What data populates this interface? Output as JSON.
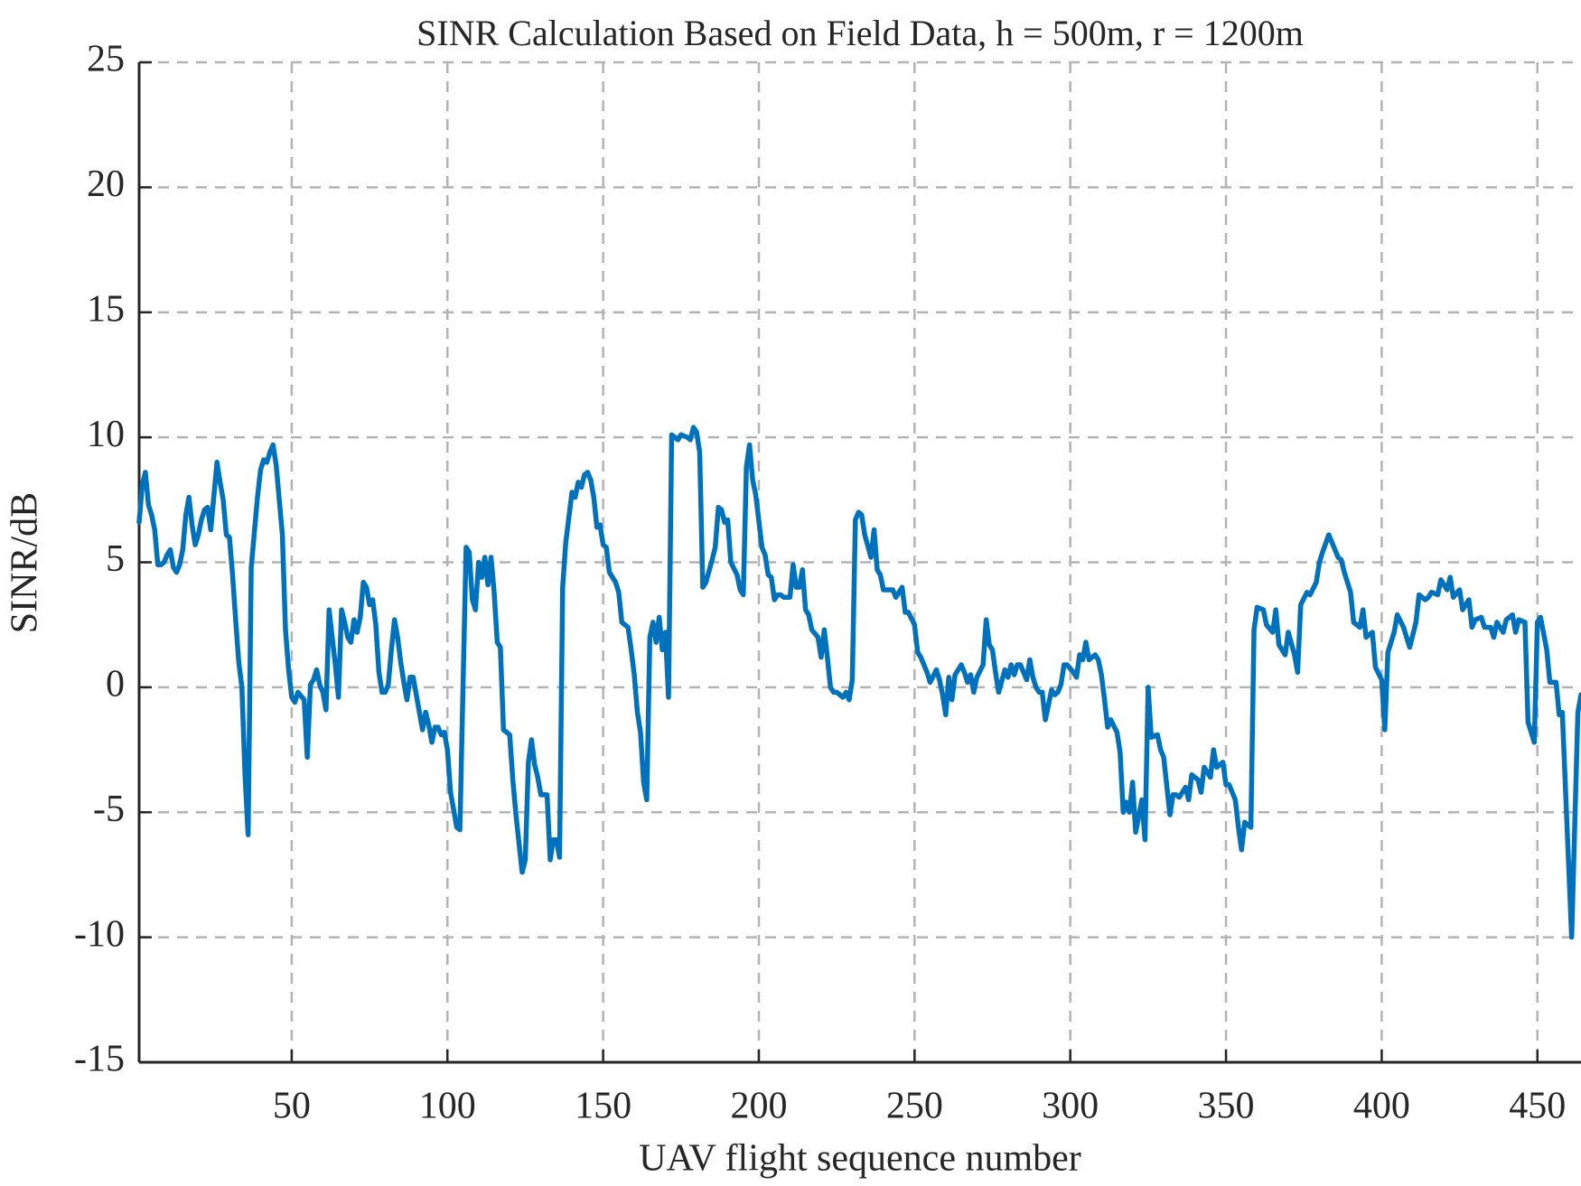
{
  "chart_data": {
    "type": "line",
    "title": "SINR Calculation Based on Field Data, h = 500m, r = 1200m",
    "xlabel": "UAV flight sequence number",
    "ylabel": "SINR/dB",
    "color": "#0072bd",
    "grid": true,
    "xlim": [
      1,
      464
    ],
    "xticks": [
      50,
      100,
      150,
      200,
      250,
      300,
      350,
      400,
      450
    ],
    "ylim": [
      -15,
      25
    ],
    "yticks": [
      -15,
      -10,
      -5,
      0,
      5,
      10,
      15,
      20,
      25
    ],
    "x": [
      1,
      2,
      3,
      4,
      5,
      6,
      7,
      8,
      9,
      10,
      11,
      12,
      13,
      14,
      15,
      16,
      17,
      18,
      19,
      20,
      21,
      22,
      23,
      24,
      26,
      27,
      28,
      29,
      30,
      31,
      32,
      33,
      34,
      35,
      36,
      37,
      38,
      39,
      40,
      41,
      42,
      43,
      44,
      45,
      46,
      47,
      48,
      49,
      50,
      51,
      52,
      54,
      55,
      56,
      57,
      58,
      59,
      60,
      61,
      62,
      63,
      64,
      65,
      66,
      67,
      68,
      69,
      70,
      71,
      72,
      73,
      74,
      75,
      76,
      77,
      78,
      79,
      80,
      81,
      82,
      83,
      84,
      85,
      86,
      87,
      88,
      89,
      90,
      91,
      92,
      93,
      94,
      95,
      96,
      97,
      98,
      99,
      100,
      101,
      102,
      103,
      104,
      105,
      106,
      107,
      108,
      109,
      110,
      111,
      112,
      113,
      114,
      115,
      116,
      117,
      118,
      119,
      120,
      121,
      122,
      124,
      125,
      126,
      127,
      128,
      129,
      130,
      131,
      132,
      133,
      134,
      135,
      136,
      137,
      138,
      139,
      140,
      141,
      142,
      143,
      144,
      145,
      146,
      147,
      148,
      149,
      150,
      151,
      152,
      153,
      154,
      155,
      156,
      158,
      159,
      160,
      161,
      162,
      163,
      164,
      165,
      166,
      167,
      168,
      169,
      170,
      171,
      172,
      173,
      174,
      175,
      177,
      178,
      179,
      180,
      181,
      182,
      183,
      185,
      186,
      187,
      188,
      189,
      190,
      191,
      193,
      194,
      195,
      196,
      197,
      198,
      199,
      201,
      202,
      203,
      204,
      205,
      206,
      207,
      208,
      210,
      211,
      212,
      213,
      214,
      215,
      216,
      217,
      219,
      220,
      221,
      222,
      223,
      224,
      225,
      227,
      228,
      229,
      230,
      231,
      232,
      233,
      234,
      236,
      237,
      238,
      239,
      240,
      241,
      243,
      244,
      245,
      246,
      247,
      248,
      250,
      251,
      252,
      253,
      254,
      255,
      257,
      258,
      259,
      260,
      261,
      262,
      263,
      265,
      266,
      267,
      268,
      269,
      270,
      272,
      273,
      274,
      275,
      276,
      277,
      279,
      280,
      281,
      282,
      283,
      284,
      286,
      287,
      288,
      289,
      290,
      291,
      292,
      294,
      295,
      296,
      297,
      298,
      299,
      301,
      302,
      303,
      304,
      305,
      306,
      308,
      309,
      310,
      311,
      312,
      313,
      315,
      316,
      317,
      318,
      319,
      320,
      321,
      323,
      324,
      325,
      326,
      328,
      329,
      330,
      332,
      333,
      334,
      335,
      337,
      338,
      339,
      341,
      342,
      343,
      345,
      346,
      347,
      349,
      350,
      351,
      353,
      354,
      355,
      356,
      358,
      359,
      360,
      362,
      363,
      365,
      366,
      367,
      369,
      370,
      372,
      373,
      374,
      376,
      377,
      379,
      380,
      381,
      383,
      384,
      386,
      387,
      388,
      390,
      391,
      393,
      394,
      395,
      397,
      398,
      400,
      401,
      402,
      404,
      405,
      407,
      408,
      409,
      411,
      412,
      414,
      415,
      416,
      418,
      419,
      421,
      422,
      423,
      425,
      426,
      428,
      429,
      430,
      432,
      433,
      435,
      436,
      437,
      439,
      440,
      442,
      443,
      444,
      446,
      447,
      449,
      450,
      451,
      453,
      454,
      456,
      457,
      458,
      460,
      461,
      463,
      464
    ],
    "values": [
      6.6,
      8.1,
      8.6,
      7.3,
      6.9,
      6.3,
      4.9,
      4.9,
      5.0,
      5.3,
      5.5,
      4.8,
      4.6,
      4.9,
      5.5,
      6.9,
      7.6,
      6.5,
      5.7,
      6.1,
      6.7,
      7.1,
      7.2,
      6.3,
      9.0,
      8.2,
      7.5,
      6.1,
      6.0,
      4.5,
      2.7,
      1.0,
      0.0,
      -3.5,
      -5.9,
      4.8,
      6.2,
      7.6,
      8.7,
      9.1,
      9.0,
      9.4,
      9.7,
      8.9,
      7.5,
      6.1,
      2.3,
      0.7,
      -0.4,
      -0.6,
      -0.2,
      -0.5,
      -2.8,
      0.1,
      0.3,
      0.7,
      0.1,
      -0.2,
      -0.9,
      3.1,
      2.0,
      0.9,
      -0.4,
      3.1,
      2.6,
      2.0,
      1.8,
      2.7,
      2.2,
      2.8,
      4.2,
      4.0,
      3.3,
      3.5,
      2.5,
      0.6,
      -0.2,
      -0.2,
      0.1,
      1.5,
      2.7,
      2.0,
      1.0,
      0.2,
      -0.5,
      0.4,
      0.4,
      -0.3,
      -1.0,
      -1.7,
      -1.0,
      -1.5,
      -2.2,
      -1.6,
      -1.6,
      -1.9,
      -1.8,
      -2.5,
      -4.2,
      -4.9,
      -5.6,
      -5.7,
      0.0,
      5.6,
      5.4,
      3.5,
      3.1,
      5.0,
      4.4,
      5.2,
      4.1,
      5.2,
      3.8,
      1.8,
      1.6,
      -1.7,
      -1.8,
      -1.9,
      -3.7,
      -5.1,
      -7.4,
      -6.9,
      -3.0,
      -2.1,
      -3.1,
      -3.6,
      -4.3,
      -4.3,
      -4.3,
      -6.9,
      -6.1,
      -6.1,
      -6.8,
      4.0,
      5.8,
      6.8,
      7.8,
      7.6,
      8.2,
      8.0,
      8.5,
      8.6,
      8.3,
      7.6,
      6.4,
      6.5,
      5.7,
      5.6,
      4.6,
      4.4,
      4.2,
      3.8,
      2.6,
      2.4,
      1.5,
      0.5,
      -1.0,
      -1.8,
      -3.8,
      -4.5,
      2.0,
      2.6,
      1.8,
      2.8,
      1.5,
      2.2,
      -0.4,
      10.1,
      10.0,
      9.9,
      10.1,
      10.0,
      9.9,
      10.4,
      10.2,
      9.4,
      4.0,
      4.2,
      5.1,
      5.6,
      7.2,
      7.1,
      6.6,
      6.7,
      5.0,
      4.5,
      3.9,
      3.7,
      8.8,
      9.7,
      8.3,
      7.7,
      5.6,
      5.3,
      4.5,
      4.4,
      3.5,
      3.7,
      3.7,
      3.6,
      3.6,
      4.9,
      4.0,
      4.0,
      4.7,
      3.1,
      2.9,
      2.3,
      2.0,
      1.2,
      2.3,
      1.2,
      0.0,
      -0.2,
      -0.2,
      -0.4,
      -0.2,
      -0.5,
      0.3,
      6.7,
      7.0,
      6.9,
      6.1,
      5.2,
      6.3,
      4.7,
      4.5,
      3.9,
      3.9,
      3.9,
      3.6,
      3.8,
      4.0,
      3.0,
      3.0,
      2.5,
      1.4,
      1.2,
      0.9,
      0.6,
      0.2,
      0.7,
      0.3,
      -0.3,
      -1.1,
      0.4,
      -0.5,
      0.5,
      0.9,
      0.6,
      0.2,
      0.5,
      -0.2,
      0.4,
      0.9,
      2.7,
      1.7,
      1.5,
      0.6,
      -0.2,
      0.7,
      0.4,
      0.9,
      0.5,
      0.9,
      0.9,
      0.3,
      1.1,
      0.4,
      0.0,
      -0.2,
      -0.2,
      -1.3,
      -0.1,
      -0.3,
      -0.2,
      0.1,
      0.9,
      0.9,
      0.6,
      0.4,
      1.3,
      1.1,
      1.8,
      1.1,
      1.3,
      1.1,
      0.5,
      -0.5,
      -1.6,
      -1.3,
      -1.8,
      -2.6,
      -5.0,
      -4.6,
      -5.0,
      -3.8,
      -5.8,
      -4.5,
      -6.1,
      0.0,
      -2.0,
      -1.9,
      -2.5,
      -2.8,
      -5.1,
      -4.3,
      -4.3,
      -4.4,
      -4.0,
      -4.5,
      -3.5,
      -3.7,
      -4.2,
      -3.2,
      -3.6,
      -2.5,
      -3.2,
      -3.0,
      -3.9,
      -3.9,
      -4.5,
      -5.6,
      -6.5,
      -5.4,
      -5.6,
      2.3,
      3.2,
      3.1,
      2.5,
      2.2,
      3.1,
      1.7,
      1.3,
      2.2,
      1.3,
      0.6,
      3.3,
      3.8,
      3.7,
      4.2,
      5.0,
      5.4,
      6.1,
      5.8,
      5.2,
      5.1,
      4.6,
      3.8,
      2.6,
      2.4,
      3.1,
      2.0,
      2.2,
      0.8,
      0.3,
      -1.7,
      1.4,
      2.2,
      2.9,
      2.4,
      2.0,
      1.6,
      2.6,
      3.7,
      3.5,
      3.6,
      3.8,
      3.7,
      4.3,
      3.9,
      4.4,
      3.6,
      3.9,
      3.1,
      3.5,
      2.4,
      2.7,
      2.8,
      2.4,
      2.4,
      2.0,
      2.6,
      2.2,
      2.7,
      2.9,
      2.2,
      2.7,
      2.6,
      -1.4,
      -2.2,
      2.6,
      2.8,
      1.5,
      0.2,
      0.2,
      -1.1,
      -1.0,
      -7.0,
      -10.0,
      -1.0,
      -0.3
    ]
  }
}
